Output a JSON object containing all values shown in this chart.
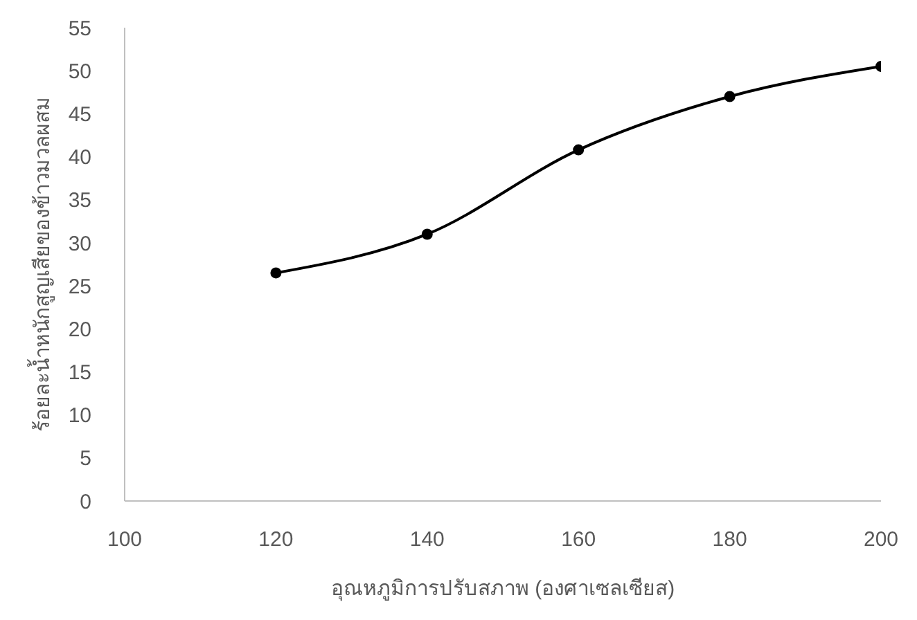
{
  "chart_data": {
    "type": "line",
    "xlabel": "อุณหภูมิการปรับสภาพ (องศาเซลเซียส)",
    "ylabel": "ร้อยละน้ำหนักสูญเสียของข้าวมวลผสม",
    "x": [
      120,
      140,
      160,
      180,
      200
    ],
    "series": [
      {
        "color": "#000000",
        "values": [
          26.5,
          31,
          40.8,
          47,
          50.5
        ]
      }
    ],
    "xlim": [
      100,
      200
    ],
    "xticks": [
      100,
      120,
      140,
      160,
      180,
      200
    ],
    "ylim": [
      0,
      55
    ],
    "yticks": [
      0,
      5,
      10,
      15,
      20,
      25,
      30,
      35,
      40,
      45,
      50,
      55
    ],
    "grid": false,
    "legend": false,
    "marker": "circle",
    "line_style": "solid"
  }
}
